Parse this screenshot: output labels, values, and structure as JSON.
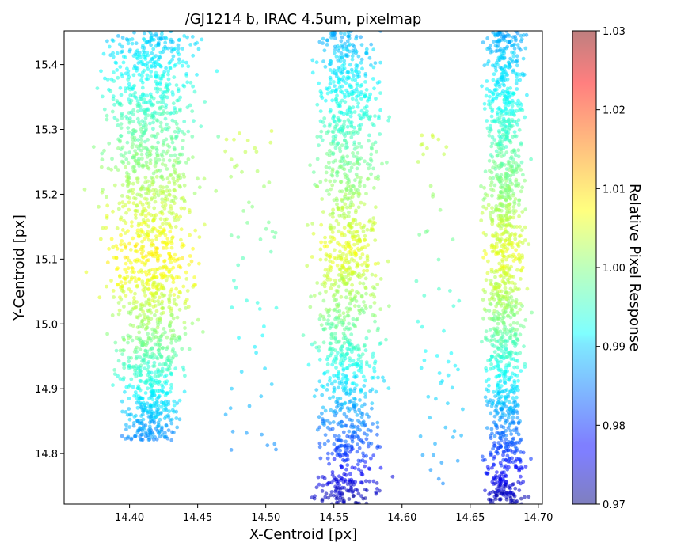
{
  "chart_data": {
    "type": "scatter",
    "title": "/GJ1214 b, IRAC 4.5um, pixelmap",
    "xlabel": "X-Centroid [px]",
    "ylabel": "Y-Centroid [px]",
    "xlim": [
      14.352,
      14.703
    ],
    "ylim": [
      14.722,
      15.452
    ],
    "x_ticks": [
      "14.40",
      "14.45",
      "14.50",
      "14.55",
      "14.60",
      "14.65",
      "14.70"
    ],
    "y_ticks": [
      "14.8",
      "14.9",
      "15.0",
      "15.1",
      "15.2",
      "15.3",
      "15.4"
    ],
    "grid": false,
    "colormap": "jet",
    "colorbar": {
      "label": "Relative Pixel Response",
      "range": [
        0.97,
        1.03
      ],
      "ticks": [
        "0.97",
        "0.98",
        "0.99",
        "1.00",
        "1.01",
        "1.02",
        "1.03"
      ]
    },
    "clusters": [
      {
        "x_range": [
          14.352,
          14.48
        ],
        "y_range": [
          14.82,
          15.452
        ],
        "peak_y": 15.11,
        "peak_value": 1.008,
        "low_value": 0.985
      },
      {
        "x_range": [
          14.515,
          14.605
        ],
        "y_range": [
          14.722,
          15.452
        ],
        "peak_y": 15.12,
        "peak_value": 1.006,
        "low_value": 0.972
      },
      {
        "x_range": [
          14.648,
          14.703
        ],
        "y_range": [
          14.722,
          15.452
        ],
        "peak_y": 15.11,
        "peak_value": 1.006,
        "low_value": 0.972
      }
    ]
  }
}
